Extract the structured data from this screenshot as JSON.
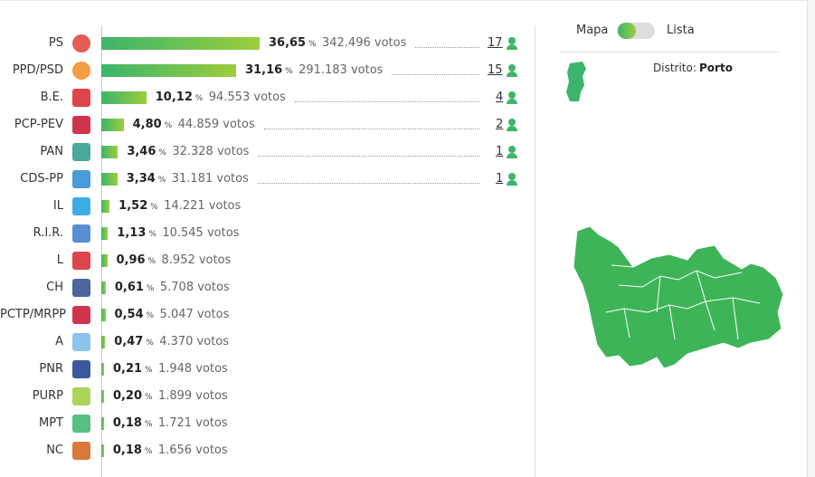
{
  "results": {
    "pct_unit": "%",
    "parties": [
      {
        "name": "PS",
        "pct": 36.65,
        "pct_label": "36,65",
        "votes": "342.496 votos",
        "seats": 17
      },
      {
        "name": "PPD/PSD",
        "pct": 31.16,
        "pct_label": "31,16",
        "votes": "291.183 votos",
        "seats": 15
      },
      {
        "name": "B.E.",
        "pct": 10.12,
        "pct_label": "10,12",
        "votes": "94.553 votos",
        "seats": 4
      },
      {
        "name": "PCP-PEV",
        "pct": 4.8,
        "pct_label": "4,80",
        "votes": "44.859 votos",
        "seats": 2
      },
      {
        "name": "PAN",
        "pct": 3.46,
        "pct_label": "3,46",
        "votes": "32.328 votos",
        "seats": 1
      },
      {
        "name": "CDS-PP",
        "pct": 3.34,
        "pct_label": "3,34",
        "votes": "31.181 votos",
        "seats": 1
      },
      {
        "name": "IL",
        "pct": 1.52,
        "pct_label": "1,52",
        "votes": "14.221 votos"
      },
      {
        "name": "R.I.R.",
        "pct": 1.13,
        "pct_label": "1,13",
        "votes": "10.545 votos"
      },
      {
        "name": "L",
        "pct": 0.96,
        "pct_label": "0,96",
        "votes": "8.952 votos"
      },
      {
        "name": "CH",
        "pct": 0.61,
        "pct_label": "0,61",
        "votes": "5.708 votos"
      },
      {
        "name": "PCTP/MRPP",
        "pct": 0.54,
        "pct_label": "0,54",
        "votes": "5.047 votos"
      },
      {
        "name": "A",
        "pct": 0.47,
        "pct_label": "0,47",
        "votes": "4.370 votos"
      },
      {
        "name": "PNR",
        "pct": 0.21,
        "pct_label": "0,21",
        "votes": "1.948 votos"
      },
      {
        "name": "PURP",
        "pct": 0.2,
        "pct_label": "0,20",
        "votes": "1.899 votos"
      },
      {
        "name": "MPT",
        "pct": 0.18,
        "pct_label": "0,18",
        "votes": "1.721 votos"
      },
      {
        "name": "NC",
        "pct": 0.18,
        "pct_label": "0,18",
        "votes": "1.656 votos"
      }
    ]
  },
  "map_panel": {
    "toggle_left": "Mapa",
    "toggle_right": "Lista",
    "district_label": "Distrito:",
    "district": "Porto"
  }
}
